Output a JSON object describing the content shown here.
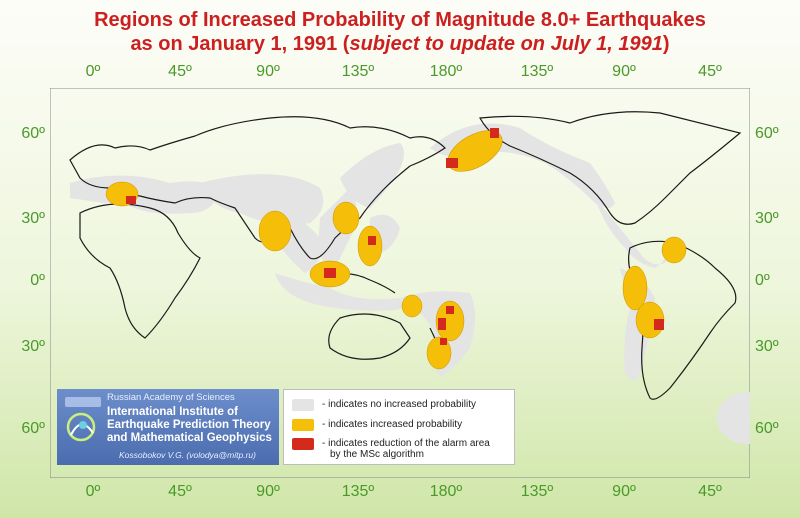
{
  "title": {
    "line1": "Regions of Increased Probability of Magnitude 8.0+ Earthquakes",
    "line2_prefix": "as on January 1, 1991 (",
    "line2_italic": "subject to update on July 1, 1991",
    "line2_suffix": ")"
  },
  "longitude_labels": [
    "0º",
    "45º",
    "90º",
    "135º",
    "180º",
    "135º",
    "90º",
    "45º"
  ],
  "latitude_labels": [
    "60º",
    "30º",
    "0º",
    "30º",
    "60º"
  ],
  "institution": {
    "academy": "Russian Academy of Sciences",
    "name": "International Institute of Earthquake Prediction Theory and Mathematical Geophysics",
    "author": "Kossobokov V.G. (volodya@mitp.ru)"
  },
  "legend": {
    "items": [
      {
        "color": "#e4e4e4",
        "text": "- indicates no increased probability"
      },
      {
        "color": "#f5be08",
        "text": "- indicates increased probability"
      },
      {
        "color": "#d42a1e",
        "text": "- indicates reduction of the alarm area",
        "text2": "by the MSc algorithm"
      }
    ]
  },
  "colors": {
    "land_outline": "#1a1a1a",
    "no_increase": "#e4e4e4",
    "increased": "#f5be08",
    "reduced": "#d42a1e",
    "axis_labels": "#4a9a2a",
    "title": "#cc2020"
  }
}
